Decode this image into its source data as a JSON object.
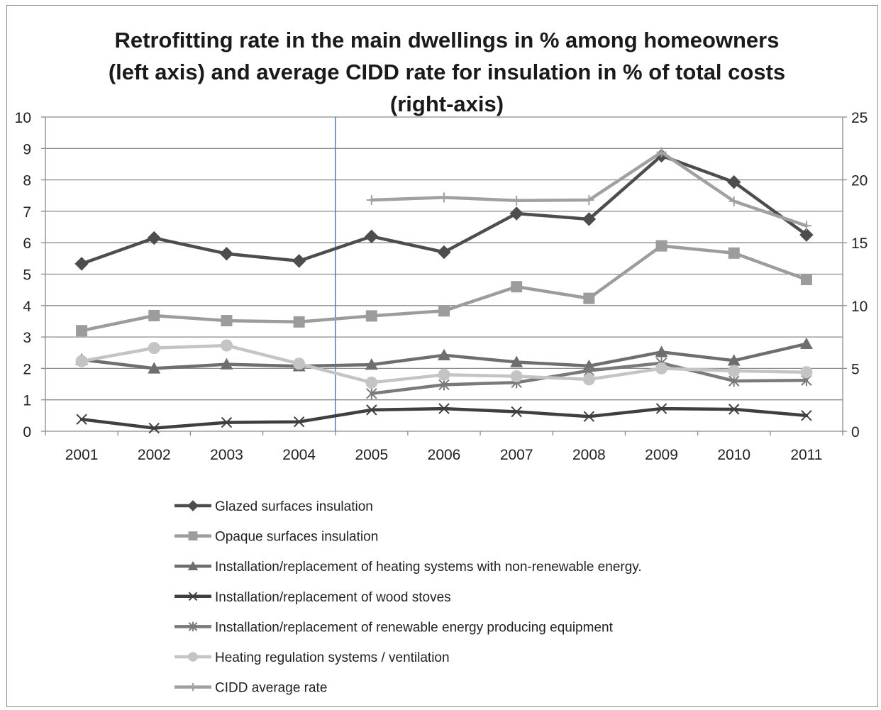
{
  "chart_data": {
    "type": "line",
    "title_lines": [
      "Retrofitting rate in the main dwellings in % among homeowners",
      "(left axis) and average CIDD rate for insulation in % of total costs",
      "(right-axis)"
    ],
    "categories": [
      "2001",
      "2002",
      "2003",
      "2004",
      "2005",
      "2006",
      "2007",
      "2008",
      "2009",
      "2010",
      "2011"
    ],
    "y_left": {
      "min": 0,
      "max": 10,
      "step": 1,
      "ticks": [
        "0",
        "1",
        "2",
        "3",
        "4",
        "5",
        "6",
        "7",
        "8",
        "9",
        "10"
      ]
    },
    "y_right": {
      "min": 0,
      "max": 25,
      "step": 5,
      "ticks": [
        "0",
        "5",
        "10",
        "15",
        "20",
        "25"
      ]
    },
    "grid": true,
    "marker_line_after_category": "2004",
    "legend_position": "bottom",
    "series": [
      {
        "name": "Glazed surfaces insulation",
        "axis": "left",
        "marker": "diamond",
        "color": "#4d4d4d",
        "values": [
          5.33,
          6.15,
          5.65,
          5.42,
          6.2,
          5.7,
          6.93,
          6.75,
          8.77,
          7.93,
          6.25
        ]
      },
      {
        "name": "Opaque surfaces insulation",
        "axis": "left",
        "marker": "square",
        "color": "#9c9c9c",
        "values": [
          3.2,
          3.68,
          3.52,
          3.48,
          3.67,
          3.83,
          4.6,
          4.23,
          5.9,
          5.67,
          4.83
        ]
      },
      {
        "name": "Installation/replacement of heating systems with non-renewable energy.",
        "axis": "left",
        "marker": "triangle",
        "color": "#6e6e6e",
        "values": [
          2.28,
          2.0,
          2.13,
          2.07,
          2.12,
          2.42,
          2.2,
          2.08,
          2.52,
          2.25,
          2.78
        ]
      },
      {
        "name": "Installation/replacement of wood stoves",
        "axis": "left",
        "marker": "x",
        "color": "#3f3f3f",
        "values": [
          0.38,
          0.1,
          0.28,
          0.3,
          0.68,
          0.72,
          0.62,
          0.47,
          0.72,
          0.7,
          0.5
        ]
      },
      {
        "name": "Installation/replacement of renewable energy producing equipment",
        "axis": "left",
        "marker": "asterisk",
        "color": "#7a7a7a",
        "values": [
          null,
          null,
          null,
          null,
          1.2,
          1.48,
          1.55,
          1.93,
          2.17,
          1.6,
          1.62
        ]
      },
      {
        "name": "Heating regulation systems / ventilation",
        "axis": "left",
        "marker": "circle",
        "color": "#c4c4c4",
        "values": [
          2.23,
          2.65,
          2.73,
          2.15,
          1.55,
          1.8,
          1.75,
          1.65,
          2.0,
          1.92,
          1.88
        ]
      },
      {
        "name": "CIDD average rate",
        "axis": "right",
        "marker": "plus",
        "color": "#a0a0a0",
        "values": [
          null,
          null,
          null,
          null,
          18.4,
          18.6,
          18.35,
          18.4,
          22.2,
          18.3,
          16.35
        ]
      }
    ]
  }
}
